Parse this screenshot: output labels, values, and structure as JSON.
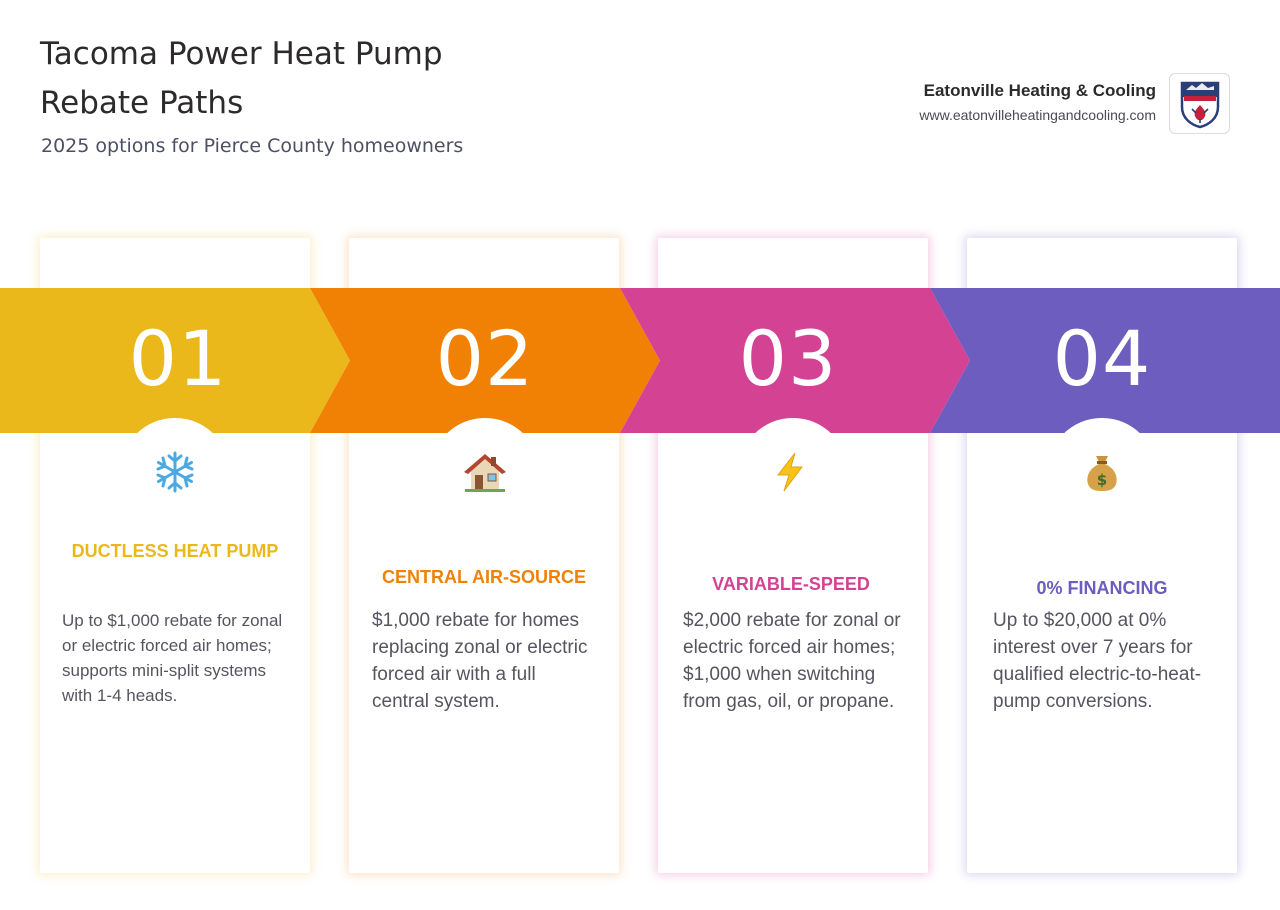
{
  "header": {
    "title": "Tacoma Power Heat Pump Rebate Paths",
    "subtitle": "2025 options for Pierce County homeowners"
  },
  "brand": {
    "name": "Eatonville Heating & Cooling",
    "url": "www.eatonvilleheatingandcooling.com",
    "logo_text": "EATONVILLE",
    "logo_subtext": "HEATING & COOLING"
  },
  "steps": [
    {
      "number": "01",
      "icon": "snowflake-icon",
      "heading": "DUCTLESS HEAT PUMP",
      "description": "Up to $1,000 rebate for zonal or electric forced air homes; supports mini-split systems with 1-4 heads.",
      "color": "#EBB81C"
    },
    {
      "number": "02",
      "icon": "house-icon",
      "heading": "CENTRAL AIR-SOURCE",
      "description": "$1,000 rebate for homes replacing zonal or electric forced air with a full central system.",
      "color": "#F08105"
    },
    {
      "number": "03",
      "icon": "lightning-icon",
      "heading": "VARIABLE-SPEED",
      "description": "$2,000 rebate for zonal or electric forced air homes; $1,000 when switching from gas, oil, or propane.",
      "color": "#D44393"
    },
    {
      "number": "04",
      "icon": "money-bag-icon",
      "heading": "0% FINANCING",
      "description": "Up to $20,000 at 0% interest over 7 years for qualified electric-to-heat-pump conversions.",
      "color": "#6C5DBE"
    }
  ]
}
